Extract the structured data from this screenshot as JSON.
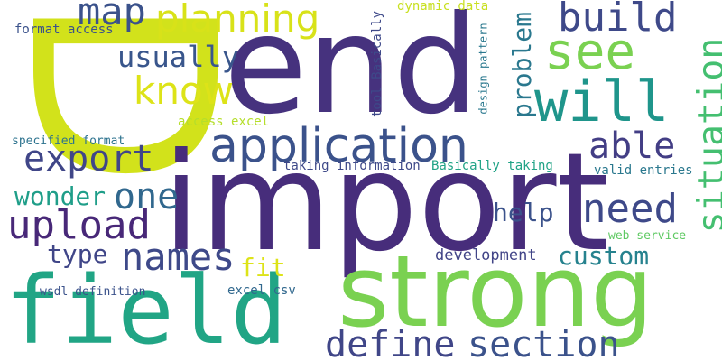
{
  "words": [
    {
      "text": "D",
      "color": "#d2e21b"
    },
    {
      "text": "end",
      "color": "#46327e"
    },
    {
      "text": "import",
      "color": "#472d7b"
    },
    {
      "text": "field",
      "color": "#21a585"
    },
    {
      "text": "strong",
      "color": "#7ad151"
    },
    {
      "text": "application",
      "color": "#3b528b"
    },
    {
      "text": "planning",
      "color": "#d8e219"
    },
    {
      "text": "map",
      "color": "#3b528b"
    },
    {
      "text": "build",
      "color": "#3e4989"
    },
    {
      "text": "see",
      "color": "#7ad151"
    },
    {
      "text": "will",
      "color": "#1f958b"
    },
    {
      "text": "know",
      "color": "#dde318"
    },
    {
      "text": "usually",
      "color": "#39568c"
    },
    {
      "text": "able",
      "color": "#433e85"
    },
    {
      "text": "export",
      "color": "#404688"
    },
    {
      "text": "one",
      "color": "#31688e"
    },
    {
      "text": "wonder",
      "color": "#1f9e89"
    },
    {
      "text": "upload",
      "color": "#482878"
    },
    {
      "text": "need",
      "color": "#3e4989"
    },
    {
      "text": "help",
      "color": "#3b528b"
    },
    {
      "text": "names",
      "color": "#3e4989"
    },
    {
      "text": "type",
      "color": "#404688"
    },
    {
      "text": "fit",
      "color": "#dde318"
    },
    {
      "text": "custom",
      "color": "#26828e"
    },
    {
      "text": "development",
      "color": "#414487"
    },
    {
      "text": "define",
      "color": "#404688"
    },
    {
      "text": "section",
      "color": "#3b528b"
    },
    {
      "text": "situation",
      "color": "#44bf70"
    },
    {
      "text": "problem",
      "color": "#2a788e"
    },
    {
      "text": "format access",
      "color": "#3b528b"
    },
    {
      "text": "dynamic data",
      "color": "#c8e020"
    },
    {
      "text": "tool Basically",
      "color": "#3e4989"
    },
    {
      "text": "design pattern",
      "color": "#2a788e"
    },
    {
      "text": "access excel",
      "color": "#b5de2b"
    },
    {
      "text": "specified format",
      "color": "#2c728e"
    },
    {
      "text": "taking information",
      "color": "#3e4989"
    },
    {
      "text": "Basically taking",
      "color": "#20a386"
    },
    {
      "text": "valid entries",
      "color": "#2a788e"
    },
    {
      "text": "web service",
      "color": "#5ec962"
    },
    {
      "text": "wsdl definition",
      "color": "#3b528b"
    },
    {
      "text": "excel csv",
      "color": "#31688e"
    }
  ]
}
